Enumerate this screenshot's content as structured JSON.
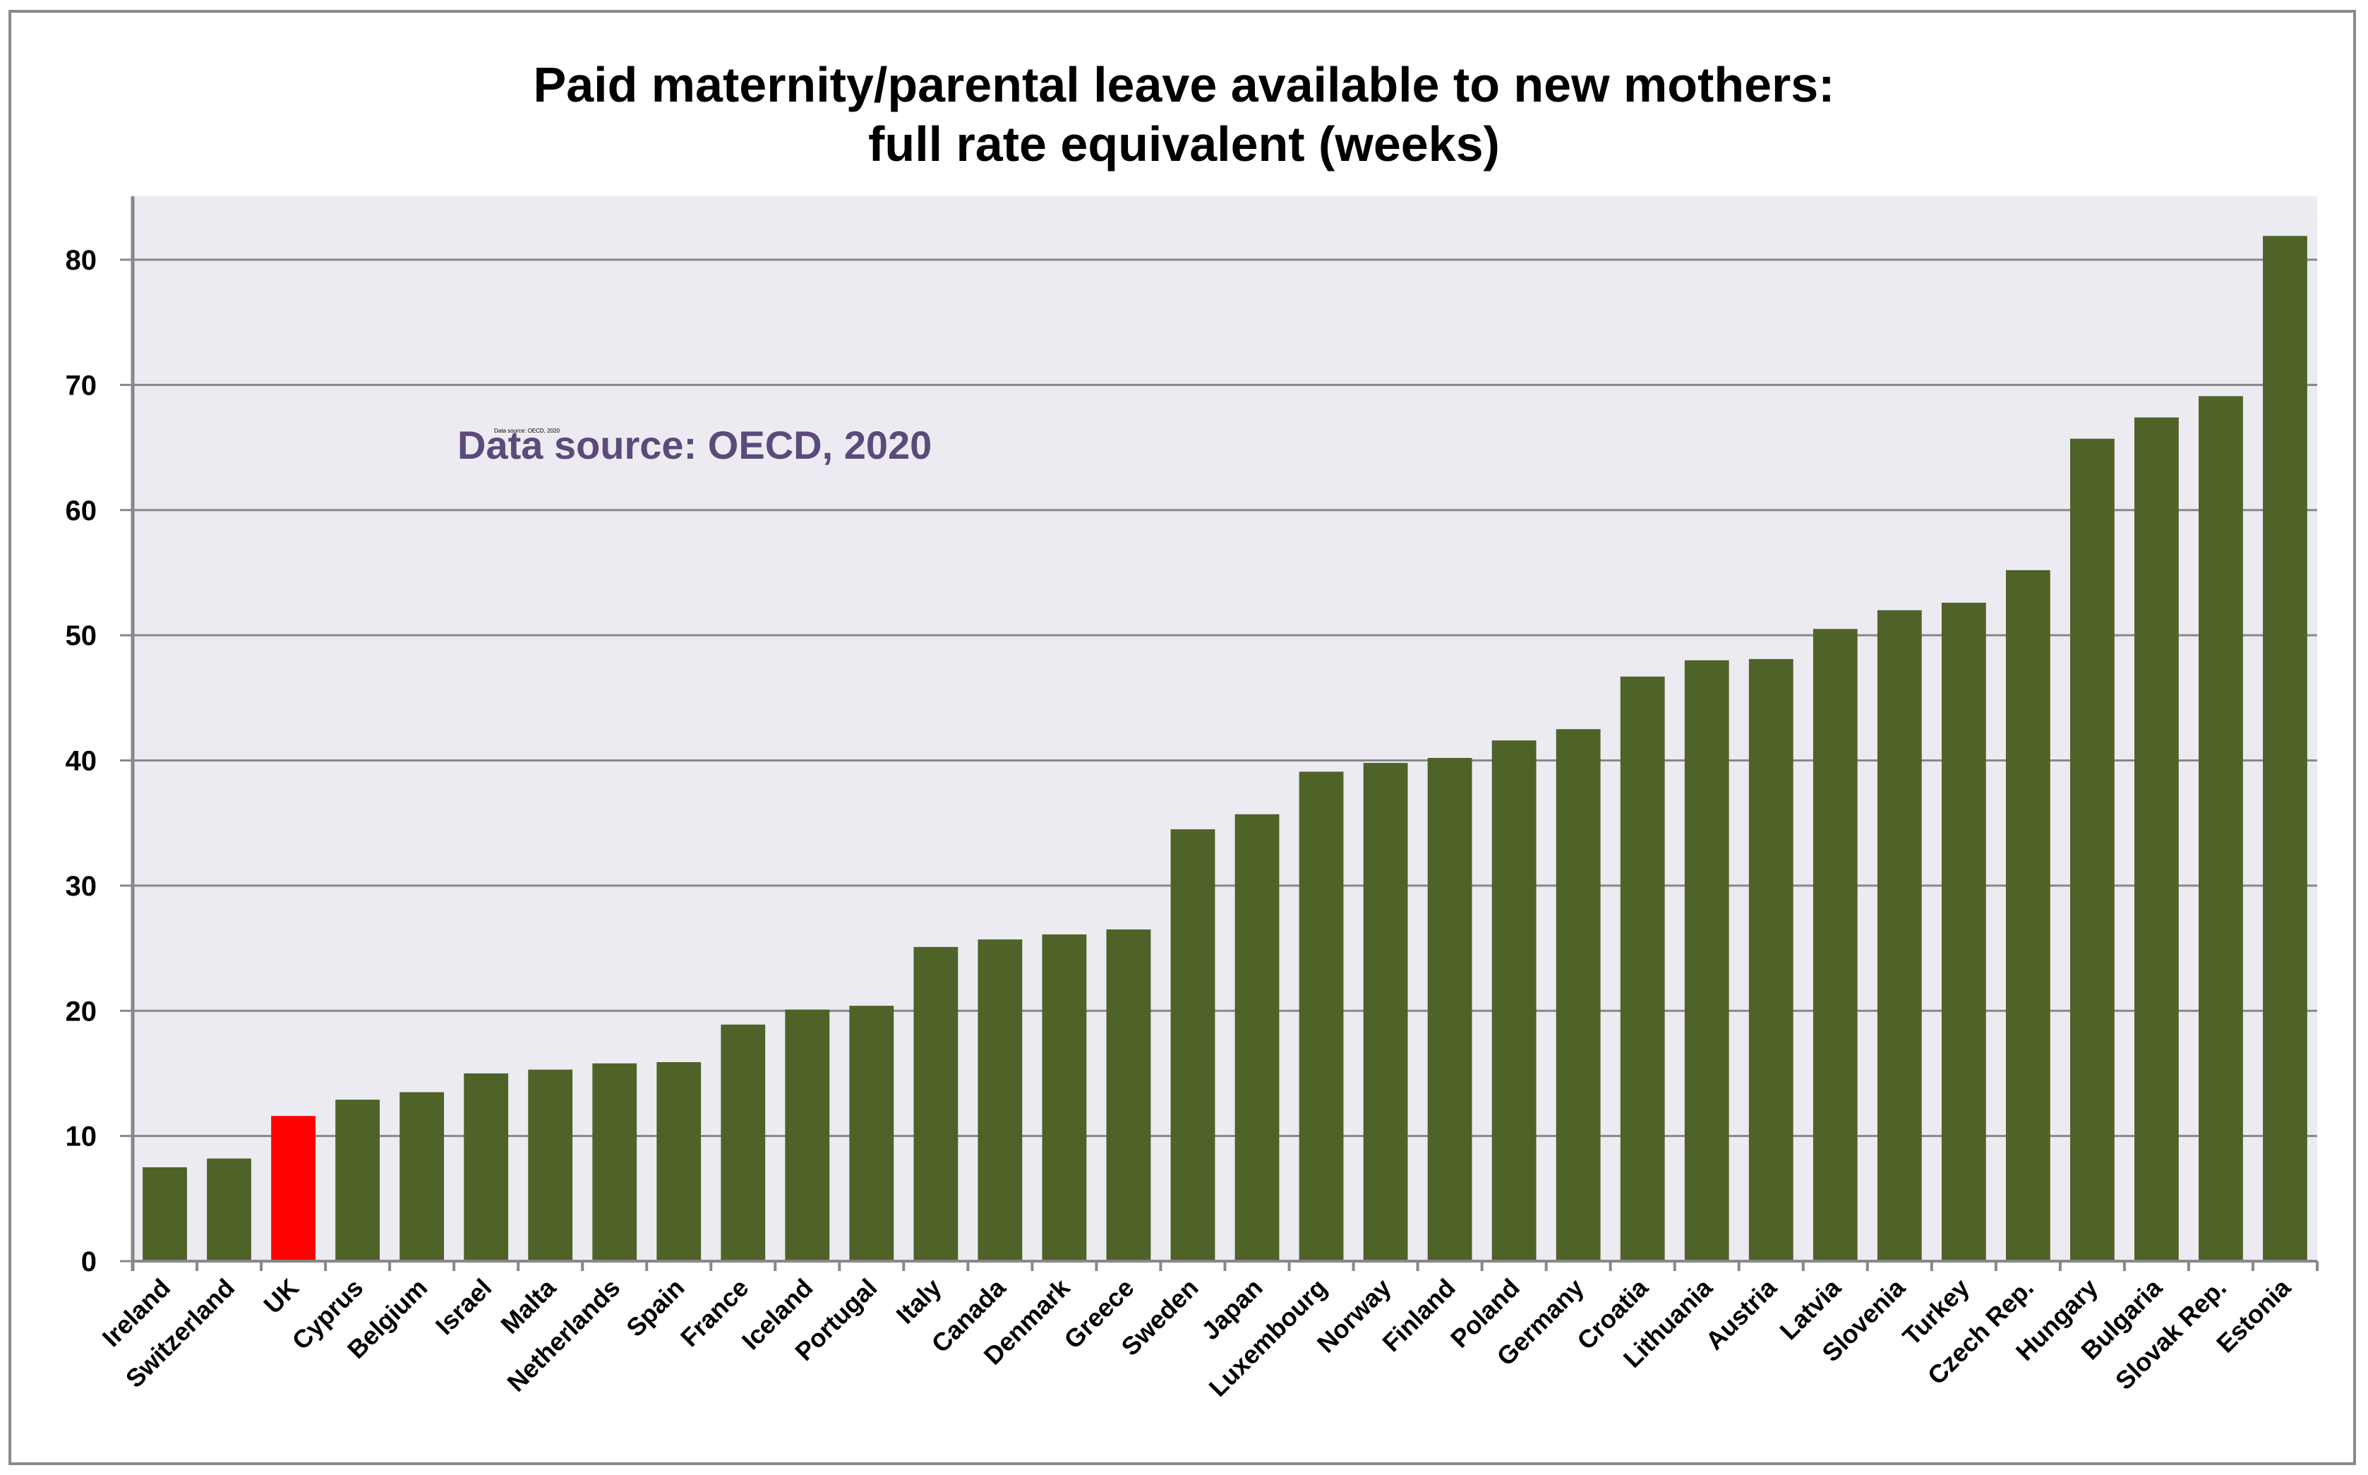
{
  "chart_data": {
    "type": "bar",
    "title_line1": "Paid maternity/parental leave available to new mothers:",
    "title_line2": "full rate equivalent (weeks)",
    "xlabel": "",
    "ylabel": "",
    "ylim": [
      0,
      85
    ],
    "yticks": [
      0,
      10,
      20,
      30,
      40,
      50,
      60,
      70,
      80
    ],
    "grid": true,
    "annotation": "Data source: OECD, 2020",
    "annotation_small": "Data source: OECD, 2020",
    "categories": [
      "Ireland",
      "Switzerland",
      "UK",
      "Cyprus",
      "Belgium",
      "Israel",
      "Malta",
      "Netherlands",
      "Spain",
      "France",
      "Iceland",
      "Portugal",
      "Italy",
      "Canada",
      "Denmark",
      "Greece",
      "Sweden",
      "Japan",
      "Luxembourg",
      "Norway",
      "Finland",
      "Poland",
      "Germany",
      "Croatia",
      "Lithuania",
      "Austria",
      "Latvia",
      "Slovenia",
      "Turkey",
      "Czech Rep.",
      "Hungary",
      "Bulgaria",
      "Slovak Rep.",
      "Estonia"
    ],
    "values": [
      7.5,
      8.2,
      11.6,
      12.9,
      13.5,
      15.0,
      15.3,
      15.8,
      15.9,
      18.9,
      20.1,
      20.4,
      25.1,
      25.7,
      26.1,
      26.5,
      34.5,
      35.7,
      39.1,
      39.8,
      40.2,
      41.6,
      42.5,
      46.7,
      48.0,
      48.1,
      50.5,
      52.0,
      52.6,
      55.2,
      65.7,
      67.4,
      69.1,
      81.9
    ],
    "highlight": "UK",
    "colors": {
      "bar": "#4f6228",
      "highlight": "#ff0000",
      "plot_bg": "#ecebf2",
      "grid": "#888888",
      "annotation": "#5b4a7b"
    }
  }
}
